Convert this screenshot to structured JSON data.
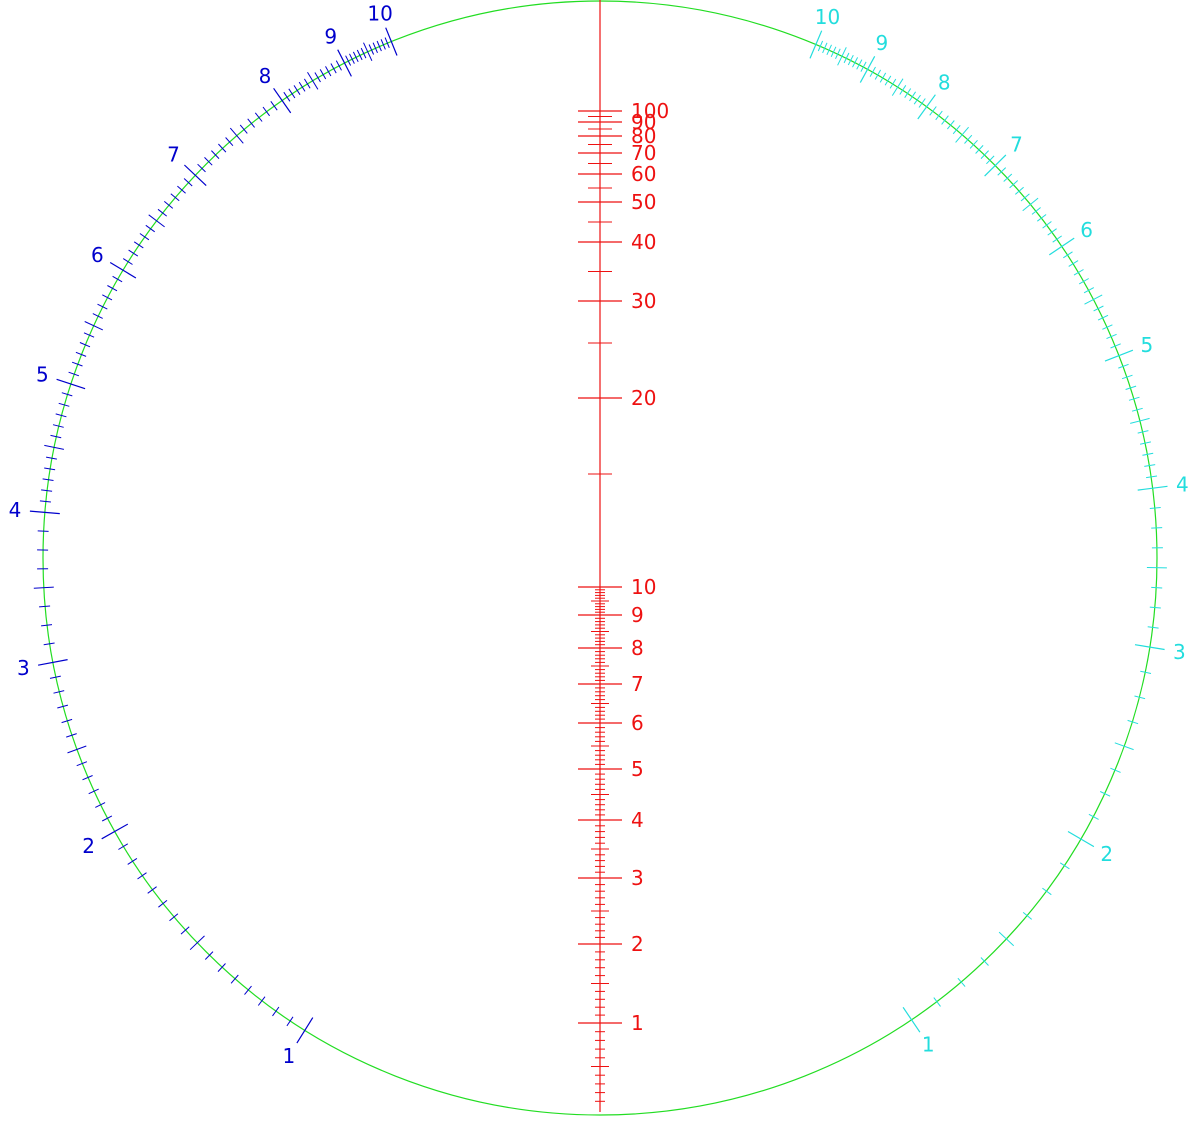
{
  "colors": {
    "background": "#ffffff",
    "circle": "#22dd22",
    "left_scale": "#0000cc",
    "right_scale": "#22dddd",
    "center_scale": "#ee1111"
  },
  "left_scale": {
    "labels": [
      "1",
      "2",
      "3",
      "4",
      "5",
      "6",
      "7",
      "8",
      "9",
      "10"
    ],
    "values": [
      1,
      2,
      3,
      4,
      5,
      6,
      7,
      8,
      9,
      10
    ],
    "ticks_between_labels": [
      16,
      12,
      8,
      12,
      12,
      12,
      12,
      12,
      12
    ]
  },
  "right_scale": {
    "labels": [
      "1",
      "2",
      "3",
      "4",
      "5",
      "6",
      "7",
      "8",
      "9",
      "10"
    ],
    "values": [
      1,
      2,
      3,
      4,
      5,
      6,
      7,
      8,
      9,
      10
    ],
    "ticks_between_labels": [
      8,
      8,
      8,
      12,
      12,
      12,
      12,
      12,
      12
    ]
  },
  "center_scale": {
    "lower_labels": [
      "1",
      "2",
      "3",
      "4",
      "5",
      "6",
      "7",
      "8",
      "9",
      "10"
    ],
    "lower_values": [
      1,
      2,
      3,
      4,
      5,
      6,
      7,
      8,
      9,
      10
    ],
    "upper_labels": [
      "20",
      "30",
      "40",
      "50",
      "60",
      "70",
      "80",
      "90",
      "100"
    ],
    "upper_values": [
      20,
      30,
      40,
      50,
      60,
      70,
      80,
      90,
      100
    ],
    "upper_minor_values": [
      15,
      25,
      35,
      45,
      55,
      65,
      75,
      85,
      95
    ]
  }
}
